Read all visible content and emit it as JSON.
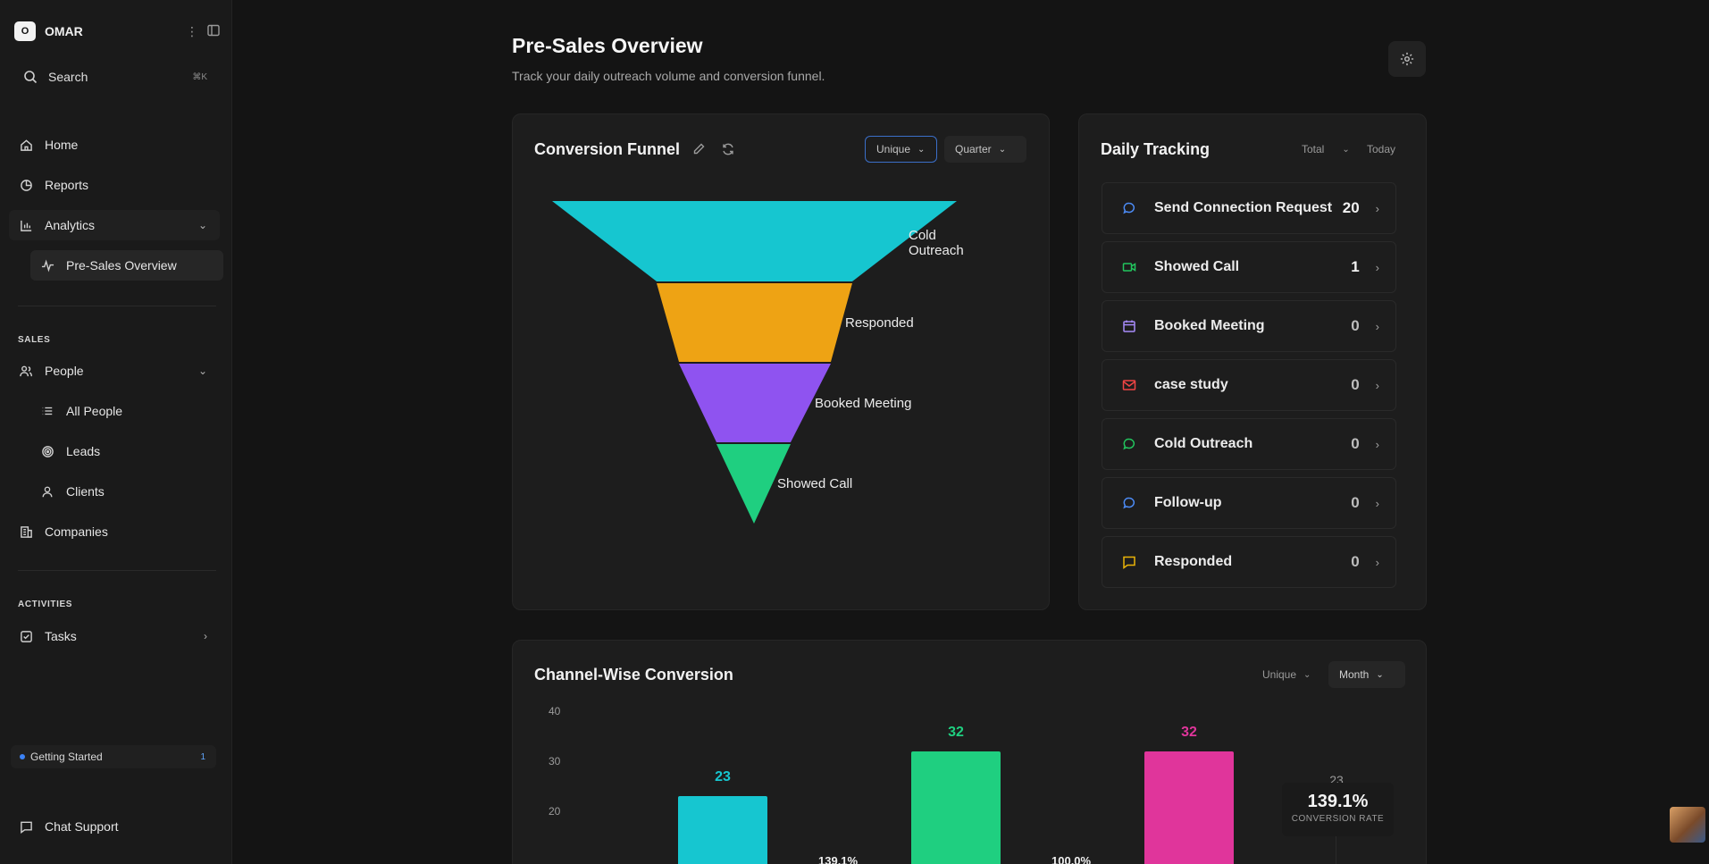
{
  "sidebar": {
    "workspace_logo": "O",
    "workspace_name": "OMAR",
    "search_label": "Search",
    "search_shortcut": "⌘K",
    "nav": {
      "home": "Home",
      "reports": "Reports",
      "analytics": "Analytics",
      "pre_sales_overview": "Pre-Sales Overview"
    },
    "sales_section": "SALES",
    "sales": {
      "people": "People",
      "all_people": "All People",
      "leads": "Leads",
      "clients": "Clients",
      "companies": "Companies"
    },
    "activities_section": "ACTIVITIES",
    "activities": {
      "tasks": "Tasks"
    },
    "getting_started": "Getting Started",
    "getting_started_count": "1",
    "chat_support": "Chat Support"
  },
  "page": {
    "title": "Pre-Sales Overview",
    "subtitle": "Track your daily outreach volume and conversion funnel."
  },
  "funnel_card": {
    "title": "Conversion Funnel",
    "filter_unique": "Unique",
    "filter_period": "Quarter",
    "stages": [
      {
        "label": "Cold Outreach",
        "color": "#16c6d0"
      },
      {
        "label": "Responded",
        "color": "#eea314"
      },
      {
        "label": "Booked Meeting",
        "color": "#8f53f0"
      },
      {
        "label": "Showed Call",
        "color": "#1fcf80"
      }
    ]
  },
  "tracking_card": {
    "title": "Daily Tracking",
    "filter_total": "Total",
    "filter_today": "Today",
    "items": [
      {
        "label": "Send Connection Request",
        "value": "20",
        "icon": "chat-bubble-icon",
        "color": "#4c8bf5"
      },
      {
        "label": "Showed Call",
        "value": "1",
        "icon": "video-icon",
        "color": "#22c55e"
      },
      {
        "label": "Booked Meeting",
        "value": "0",
        "icon": "calendar-icon",
        "color": "#a78bfa"
      },
      {
        "label": "case study",
        "value": "0",
        "icon": "mail-icon",
        "color": "#ef4444"
      },
      {
        "label": "Cold Outreach",
        "value": "0",
        "icon": "chat-bubble-icon",
        "color": "#22c55e"
      },
      {
        "label": "Follow-up",
        "value": "0",
        "icon": "chat-bubble-icon",
        "color": "#4c8bf5"
      },
      {
        "label": "Responded",
        "value": "0",
        "icon": "message-square-icon",
        "color": "#eab308"
      }
    ]
  },
  "channel_card": {
    "title": "Channel-Wise Conversion",
    "filter_unique": "Unique",
    "filter_period": "Month",
    "conversion_rate_value": "139.1%",
    "conversion_rate_label": "CONVERSION RATE"
  },
  "chart_data": {
    "type": "bar",
    "title": "Channel-Wise Conversion",
    "y_ticks": [
      "40",
      "30",
      "20"
    ],
    "ylim": [
      0,
      40
    ],
    "values": [
      23,
      32,
      32,
      23
    ],
    "value_labels": [
      "23",
      "32",
      "32",
      "23"
    ],
    "colors": [
      "#16c6d0",
      "#1fcf80",
      "#e0359b",
      "#2a2a2a"
    ],
    "value_label_colors": [
      "#16c6d0",
      "#1fcf80",
      "#e0359b",
      "#9a9a9a"
    ],
    "between_labels": [
      "139.1%",
      "100.0%"
    ]
  }
}
